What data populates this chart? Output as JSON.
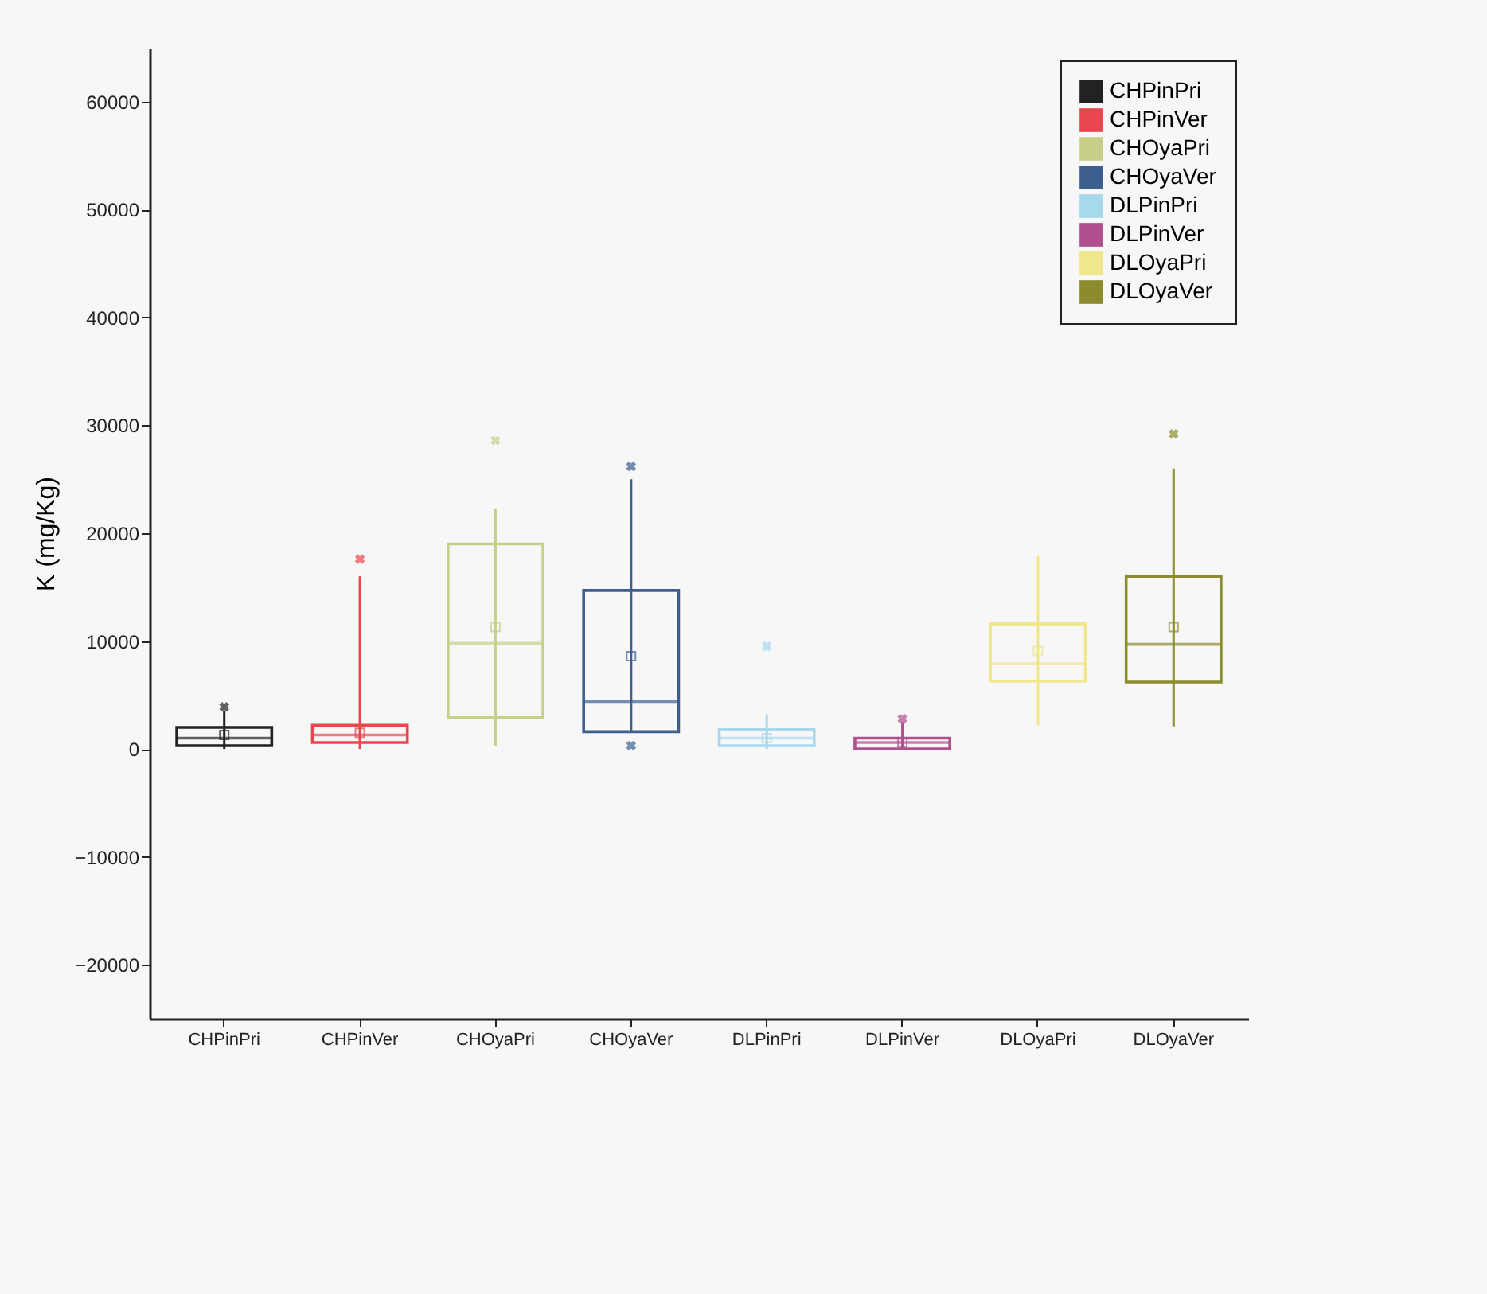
{
  "chart_data": {
    "type": "box",
    "ylabel": "K (mg/Kg)",
    "categories": [
      "CHPinPri",
      "CHPinVer",
      "CHOyaPri",
      "CHOyaVer",
      "DLPinPri",
      "DLPinVer",
      "DLOyaPri",
      "DLOyaVer"
    ],
    "series": [
      {
        "name": "CHPinPri",
        "color": "#222222",
        "boxes": [
          {
            "low": 0,
            "q1": 300,
            "median": 1000,
            "q3": 2000,
            "high": 3500,
            "mean": 1300,
            "outliers": [
              3900
            ]
          },
          null,
          null,
          null,
          null,
          null,
          null,
          null
        ]
      },
      {
        "name": "CHPinVer",
        "color": "#e8474f",
        "boxes": [
          null,
          {
            "low": 0,
            "q1": 600,
            "median": 1300,
            "q3": 2200,
            "high": 16000,
            "mean": 1500,
            "outliers": [
              17600
            ]
          },
          null,
          null,
          null,
          null,
          null,
          null
        ]
      },
      {
        "name": "CHOyaPri",
        "color": "#c8cf8a",
        "boxes": [
          null,
          null,
          {
            "low": 300,
            "q1": 2900,
            "median": 9800,
            "q3": 19000,
            "high": 22300,
            "mean": 11300,
            "outliers": [
              28600
            ]
          },
          null,
          null,
          null,
          null,
          null
        ]
      },
      {
        "name": "CHOyaVer",
        "color": "#3d5f8f",
        "boxes": [
          null,
          null,
          null,
          {
            "low": 1600,
            "q1": 1600,
            "median": 4400,
            "q3": 14700,
            "high": 25000,
            "mean": 8600,
            "outliers": [
              26200,
              300
            ]
          },
          null,
          null,
          null,
          null
        ]
      },
      {
        "name": "DLPinPri",
        "color": "#a8d8ec",
        "boxes": [
          null,
          null,
          null,
          null,
          {
            "low": 0,
            "q1": 300,
            "median": 1000,
            "q3": 1800,
            "high": 3200,
            "mean": 1000,
            "outliers": [
              9500
            ]
          },
          null,
          null,
          null
        ]
      },
      {
        "name": "DLPinVer",
        "color": "#b0508f",
        "boxes": [
          null,
          null,
          null,
          null,
          null,
          {
            "low": 0,
            "q1": 0,
            "median": 600,
            "q3": 1000,
            "high": 2500,
            "mean": 600,
            "outliers": [
              2800
            ]
          },
          null,
          null
        ]
      },
      {
        "name": "DLOyaPri",
        "color": "#f0e68c",
        "boxes": [
          null,
          null,
          null,
          null,
          null,
          null,
          {
            "low": 2200,
            "q1": 6300,
            "median": 7900,
            "q3": 11600,
            "high": 17900,
            "mean": 9100
          },
          null
        ]
      },
      {
        "name": "DLOyaVer",
        "color": "#8c8c2e",
        "boxes": [
          null,
          null,
          null,
          null,
          null,
          null,
          null,
          {
            "low": 2100,
            "q1": 6200,
            "median": 9700,
            "q3": 16000,
            "high": 26000,
            "mean": 11300,
            "outliers": [
              29200
            ]
          }
        ]
      }
    ],
    "ylim": [
      -25000,
      65000
    ],
    "yticks": [
      -20000,
      -10000,
      0,
      10000,
      20000,
      30000,
      40000,
      50000,
      60000
    ],
    "legend": "top right"
  }
}
